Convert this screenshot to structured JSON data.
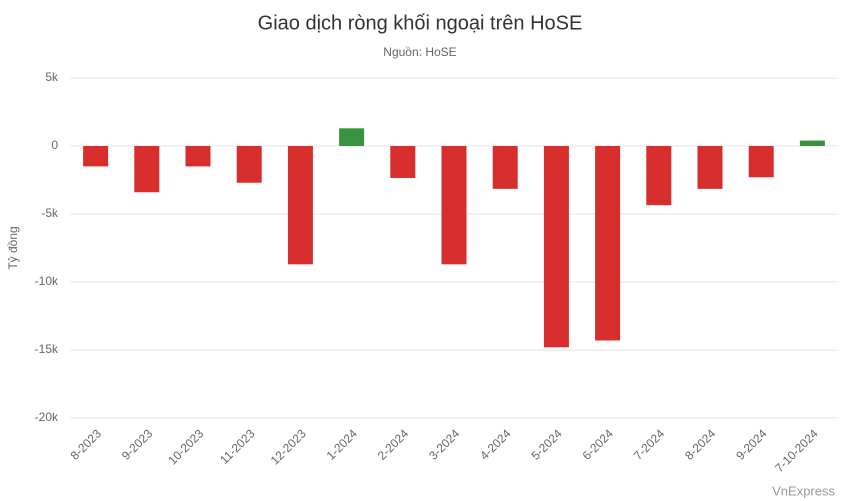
{
  "chart_data": {
    "type": "bar",
    "title": "Giao dịch ròng khối ngoại trên HoSE",
    "subtitle": "Nguồn: HoSE",
    "y_label": "Tỷ đồng",
    "credit": "VnExpress",
    "categories": [
      "8-2023",
      "9-2023",
      "10-2023",
      "11-2023",
      "12-2023",
      "1-2024",
      "2-2024",
      "3-2024",
      "4-2024",
      "5-2024",
      "6-2024",
      "7-2024",
      "8-2024",
      "9-2024",
      "7-10-2024"
    ],
    "values": [
      -1500,
      -3400,
      -1500,
      -2700,
      -8700,
      1300,
      -2350,
      -8700,
      -3150,
      -14800,
      -14300,
      -4350,
      -3150,
      -2300,
      400
    ],
    "colors": [
      "#d62d2d",
      "#d62d2d",
      "#d62d2d",
      "#d62d2d",
      "#d62d2d",
      "#3a913f",
      "#d62d2d",
      "#d62d2d",
      "#d62d2d",
      "#d62d2d",
      "#d62d2d",
      "#d62d2d",
      "#d62d2d",
      "#d62d2d",
      "#3a913f"
    ],
    "ylim": [
      -20000,
      5000
    ],
    "yticks": [
      {
        "value": -20000,
        "label": "-20k"
      },
      {
        "value": -15000,
        "label": "-15k"
      },
      {
        "value": -10000,
        "label": "-10k"
      },
      {
        "value": -5000,
        "label": "-5k"
      },
      0,
      {
        "value": 5000,
        "label": "5k"
      }
    ],
    "grid": true
  }
}
